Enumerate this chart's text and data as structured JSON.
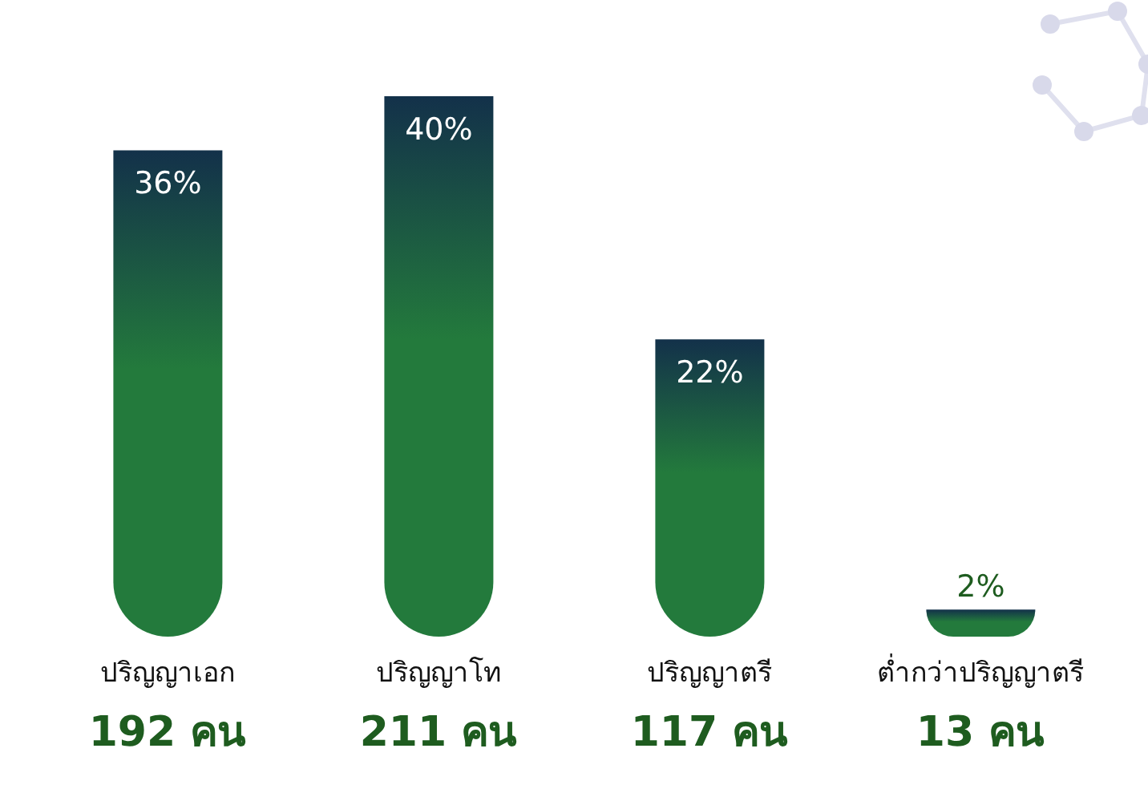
{
  "chart_data": {
    "type": "bar",
    "categories": [
      "ปริญญาเอก",
      "ปริญญาโท",
      "ปริญญาตรี",
      "ต่ำกว่าปริญญาตรี"
    ],
    "values": [
      36,
      40,
      22,
      2
    ],
    "color": "#237a3c",
    "value_labels": [
      "36%",
      "40%",
      "22%",
      "2%"
    ],
    "annotations": [
      "192 คน",
      "211 คน",
      "117 คน",
      "13 คน"
    ],
    "grid": false,
    "legend": false
  }
}
